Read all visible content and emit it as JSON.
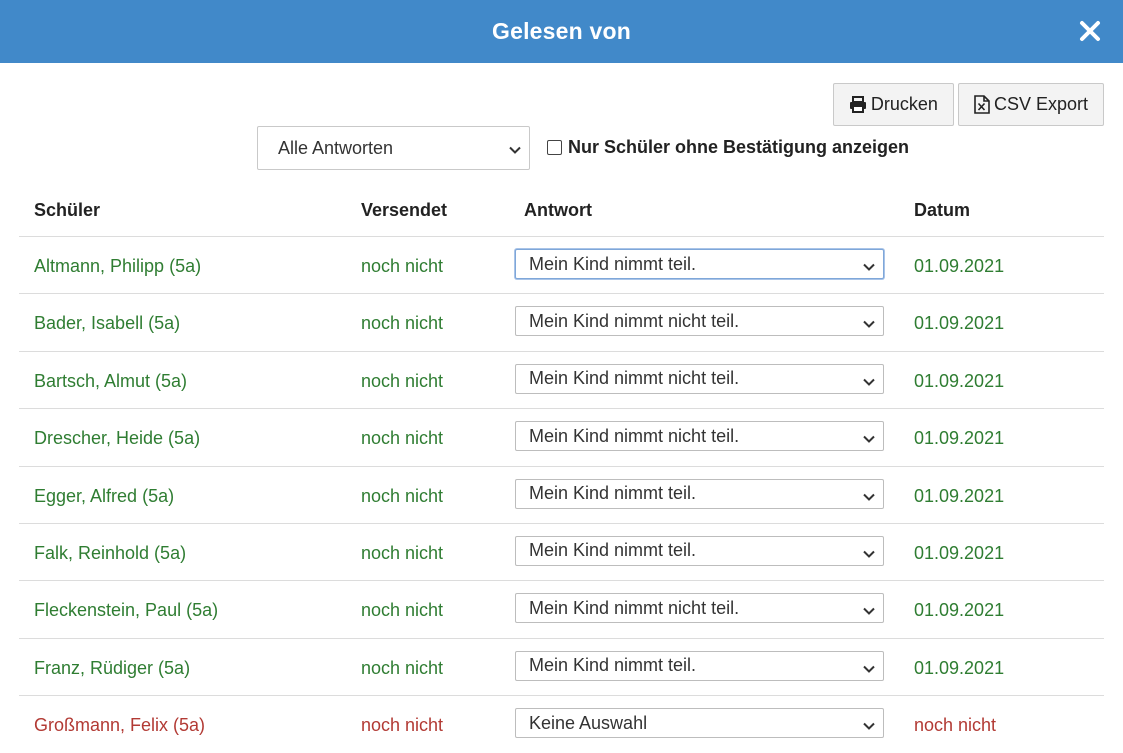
{
  "header": {
    "title": "Gelesen von",
    "close_icon": "close-icon"
  },
  "toolbar": {
    "print_label": "Drucken",
    "csv_label": "CSV Export"
  },
  "filter": {
    "select_value": "Alle Antworten",
    "only_unconfirmed_label": "Nur Schüler ohne Bestätigung anzeigen",
    "only_unconfirmed_checked": false
  },
  "table": {
    "headers": [
      "Schüler",
      "Versendet",
      "Antwort",
      "Datum"
    ],
    "rows": [
      {
        "name": "Altmann, Philipp (5a)",
        "sent": "noch nicht",
        "answer": "Mein Kind nimmt teil.",
        "date": "01.09.2021",
        "status": "ok"
      },
      {
        "name": "Bader, Isabell (5a)",
        "sent": "noch nicht",
        "answer": "Mein Kind nimmt nicht teil.",
        "date": "01.09.2021",
        "status": "ok"
      },
      {
        "name": "Bartsch, Almut (5a)",
        "sent": "noch nicht",
        "answer": "Mein Kind nimmt nicht teil.",
        "date": "01.09.2021",
        "status": "ok"
      },
      {
        "name": "Drescher, Heide (5a)",
        "sent": "noch nicht",
        "answer": "Mein Kind nimmt nicht teil.",
        "date": "01.09.2021",
        "status": "ok"
      },
      {
        "name": "Egger, Alfred (5a)",
        "sent": "noch nicht",
        "answer": "Mein Kind nimmt teil.",
        "date": "01.09.2021",
        "status": "ok"
      },
      {
        "name": "Falk, Reinhold (5a)",
        "sent": "noch nicht",
        "answer": "Mein Kind nimmt teil.",
        "date": "01.09.2021",
        "status": "ok"
      },
      {
        "name": "Fleckenstein, Paul (5a)",
        "sent": "noch nicht",
        "answer": "Mein Kind nimmt nicht teil.",
        "date": "01.09.2021",
        "status": "ok"
      },
      {
        "name": "Franz, Rüdiger (5a)",
        "sent": "noch nicht",
        "answer": "Mein Kind nimmt teil.",
        "date": "01.09.2021",
        "status": "ok"
      },
      {
        "name": "Großmann, Felix (5a)",
        "sent": "noch nicht",
        "answer": "Keine Auswahl",
        "date": "noch nicht",
        "status": "pending"
      }
    ]
  },
  "colors": {
    "header_bg": "#4189c9",
    "ok_text": "#2f7d32",
    "pending_text": "#b23a34"
  }
}
